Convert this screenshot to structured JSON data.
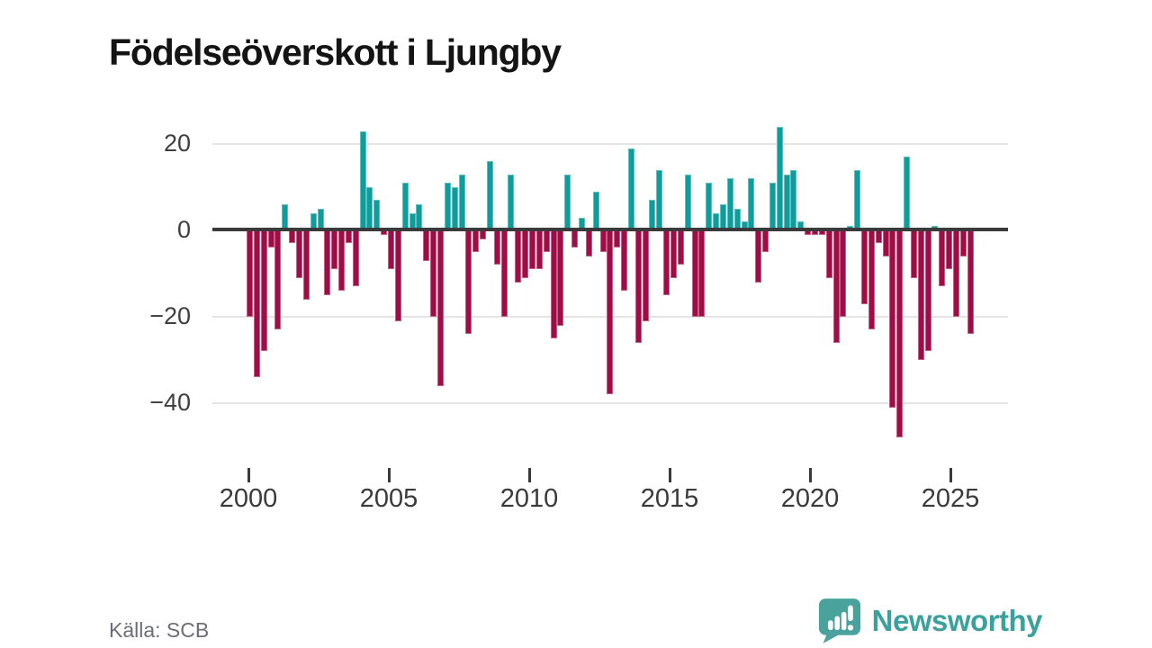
{
  "title": "Födelseöverskott i Ljungby",
  "source_label": "Källa: SCB",
  "brand": {
    "name": "Newsworthy",
    "logo_icon": "bar-chart-exclamation-bubble",
    "color": "#3ba19c"
  },
  "chart_data": {
    "type": "bar",
    "title": "Födelseöverskott i Ljungby",
    "frequency": "quarterly",
    "x_start": "2000 Q1",
    "x_end": "2025 Q3",
    "ylim": [
      -50,
      26
    ],
    "grid": "horizontal",
    "y_tick_values": [
      20,
      0,
      -20,
      -40
    ],
    "y_tick_labels": [
      "20",
      "0",
      "−20",
      "−40"
    ],
    "x_tick_years": [
      2000,
      2005,
      2010,
      2015,
      2020,
      2025
    ],
    "x_tick_labels": [
      "2000",
      "2005",
      "2010",
      "2015",
      "2020",
      "2025"
    ],
    "positive_color": "#0d9d9d",
    "negative_color": "#a00d46",
    "categories": [
      "2000 Q1",
      "2000 Q2",
      "2000 Q3",
      "2000 Q4",
      "2001 Q1",
      "2001 Q2",
      "2001 Q3",
      "2001 Q4",
      "2002 Q1",
      "2002 Q2",
      "2002 Q3",
      "2002 Q4",
      "2003 Q1",
      "2003 Q2",
      "2003 Q3",
      "2003 Q4",
      "2004 Q1",
      "2004 Q2",
      "2004 Q3",
      "2004 Q4",
      "2005 Q1",
      "2005 Q2",
      "2005 Q3",
      "2005 Q4",
      "2006 Q1",
      "2006 Q2",
      "2006 Q3",
      "2006 Q4",
      "2007 Q1",
      "2007 Q2",
      "2007 Q3",
      "2007 Q4",
      "2008 Q1",
      "2008 Q2",
      "2008 Q3",
      "2008 Q4",
      "2009 Q1",
      "2009 Q2",
      "2009 Q3",
      "2009 Q4",
      "2010 Q1",
      "2010 Q2",
      "2010 Q3",
      "2010 Q4",
      "2011 Q1",
      "2011 Q2",
      "2011 Q3",
      "2011 Q4",
      "2012 Q1",
      "2012 Q2",
      "2012 Q3",
      "2012 Q4",
      "2013 Q1",
      "2013 Q2",
      "2013 Q3",
      "2013 Q4",
      "2014 Q1",
      "2014 Q2",
      "2014 Q3",
      "2014 Q4",
      "2015 Q1",
      "2015 Q2",
      "2015 Q3",
      "2015 Q4",
      "2016 Q1",
      "2016 Q2",
      "2016 Q3",
      "2016 Q4",
      "2017 Q1",
      "2017 Q2",
      "2017 Q3",
      "2017 Q4",
      "2018 Q1",
      "2018 Q2",
      "2018 Q3",
      "2018 Q4",
      "2019 Q1",
      "2019 Q2",
      "2019 Q3",
      "2019 Q4",
      "2020 Q1",
      "2020 Q2",
      "2020 Q3",
      "2020 Q4",
      "2021 Q1",
      "2021 Q2",
      "2021 Q3",
      "2021 Q4",
      "2022 Q1",
      "2022 Q2",
      "2022 Q3",
      "2022 Q4",
      "2023 Q1",
      "2023 Q2",
      "2023 Q3",
      "2023 Q4",
      "2024 Q1",
      "2024 Q2",
      "2024 Q3",
      "2024 Q4",
      "2025 Q1",
      "2025 Q2",
      "2025 Q3"
    ],
    "values": [
      -20,
      -34,
      -28,
      -4,
      -23,
      6,
      -3,
      -11,
      -16,
      4,
      5,
      -15,
      -9,
      -14,
      -3,
      -13,
      23,
      10,
      7,
      -1,
      -9,
      -21,
      11,
      4,
      6,
      -7,
      -20,
      -36,
      11,
      10,
      13,
      -24,
      -5,
      -2,
      16,
      -8,
      -20,
      13,
      -12,
      -11,
      -9,
      -9,
      -5,
      -25,
      -22,
      13,
      -4,
      3,
      -6,
      9,
      -5,
      -38,
      -4,
      -14,
      19,
      -26,
      -21,
      7,
      14,
      -15,
      -11,
      -8,
      13,
      -20,
      -20,
      11,
      4,
      6,
      12,
      5,
      2,
      12,
      -12,
      -5,
      11,
      24,
      13,
      14,
      2,
      -1,
      -1,
      -1,
      -11,
      -26,
      -20,
      1,
      14,
      -17,
      -23,
      -3,
      -6,
      -41,
      -48,
      17,
      -11,
      -30,
      -28,
      1,
      -13,
      -9,
      -20,
      -6,
      -24
    ]
  }
}
